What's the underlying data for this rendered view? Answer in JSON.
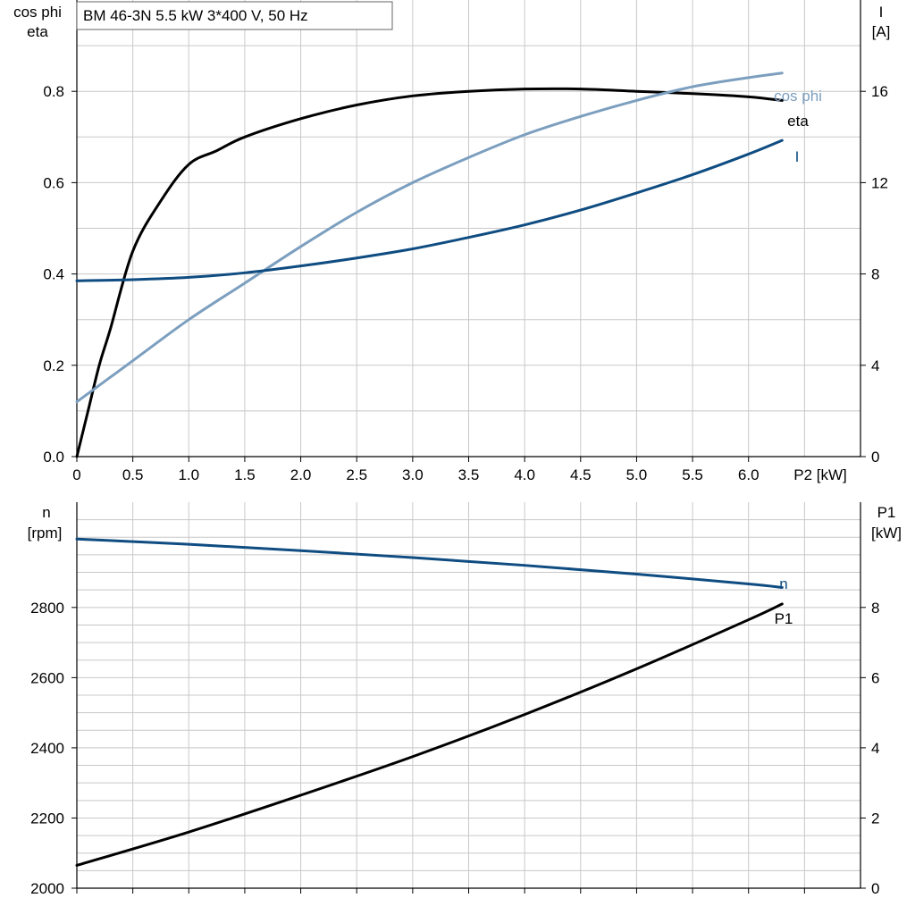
{
  "title": "BM 46-3N   5.5 kW   3*400 V, 50 Hz",
  "colors": {
    "black": "#000000",
    "dark_blue": "#0f4c81",
    "light_blue": "#7c9fbf",
    "grid": "#c8c8c8"
  },
  "chart_data": [
    {
      "type": "line",
      "xlabel": "P2 [kW]",
      "x_ticks": [
        "0",
        "0.5",
        "1.0",
        "1.5",
        "2.0",
        "2.5",
        "3.0",
        "3.5",
        "4.0",
        "4.5",
        "5.0",
        "5.5",
        "6.0"
      ],
      "xlim": [
        0,
        7.0
      ],
      "left_axis": {
        "label_line1": "cos phi",
        "label_line2": "eta",
        "ylim": [
          0,
          1.0
        ],
        "ticks": [
          "0.0",
          "0.2",
          "0.4",
          "0.6",
          "0.8"
        ]
      },
      "right_axis": {
        "label_line1": "I",
        "label_line2": "[A]",
        "ylim": [
          0,
          20
        ],
        "ticks": [
          "0",
          "4",
          "8",
          "12",
          "16"
        ]
      },
      "series": [
        {
          "name": "eta",
          "axis": "left",
          "color": "#000000",
          "x": [
            0,
            0.1,
            0.2,
            0.3,
            0.5,
            0.75,
            1.0,
            1.25,
            1.5,
            2.0,
            2.5,
            3.0,
            3.5,
            4.0,
            4.5,
            5.0,
            5.5,
            6.0,
            6.3
          ],
          "y": [
            0.0,
            0.1,
            0.2,
            0.28,
            0.45,
            0.56,
            0.64,
            0.67,
            0.7,
            0.74,
            0.77,
            0.79,
            0.8,
            0.805,
            0.805,
            0.8,
            0.795,
            0.788,
            0.78
          ]
        },
        {
          "name": "cos phi",
          "axis": "left",
          "color": "#7c9fbf",
          "x": [
            0,
            0.5,
            1.0,
            1.5,
            2.0,
            2.5,
            3.0,
            3.5,
            4.0,
            4.5,
            5.0,
            5.5,
            6.0,
            6.3
          ],
          "y": [
            0.12,
            0.21,
            0.3,
            0.38,
            0.46,
            0.535,
            0.6,
            0.655,
            0.705,
            0.745,
            0.78,
            0.81,
            0.83,
            0.84
          ]
        },
        {
          "name": "I",
          "axis": "right",
          "color": "#0f4c81",
          "x": [
            0,
            0.5,
            1.0,
            1.5,
            2.0,
            2.5,
            3.0,
            3.5,
            4.0,
            4.5,
            5.0,
            5.5,
            6.0,
            6.3
          ],
          "y": [
            7.7,
            7.75,
            7.85,
            8.05,
            8.35,
            8.7,
            9.1,
            9.6,
            10.15,
            10.8,
            11.55,
            12.35,
            13.25,
            13.85
          ]
        }
      ]
    },
    {
      "type": "line",
      "xlim": [
        0,
        7.0
      ],
      "left_axis": {
        "label_line1": "n",
        "label_line2": "[rpm]",
        "ylim": [
          2000,
          3100
        ],
        "ticks": [
          "2000",
          "2200",
          "2400",
          "2600",
          "2800"
        ]
      },
      "right_axis": {
        "label_line1": "P1",
        "label_line2": "[kW]",
        "ylim": [
          0,
          11
        ],
        "ticks": [
          "0",
          "2",
          "4",
          "6",
          "8"
        ]
      },
      "series": [
        {
          "name": "n",
          "axis": "left",
          "color": "#0f4c81",
          "x": [
            0,
            1.0,
            2.0,
            3.0,
            4.0,
            5.0,
            6.0,
            6.3
          ],
          "y": [
            2995,
            2980,
            2962,
            2942,
            2920,
            2895,
            2867,
            2857
          ]
        },
        {
          "name": "P1",
          "axis": "right",
          "color": "#000000",
          "x": [
            0,
            1.0,
            2.0,
            3.0,
            4.0,
            5.0,
            6.0,
            6.3
          ],
          "y": [
            0.65,
            1.6,
            2.65,
            3.75,
            4.95,
            6.25,
            7.65,
            8.1
          ]
        }
      ]
    }
  ]
}
